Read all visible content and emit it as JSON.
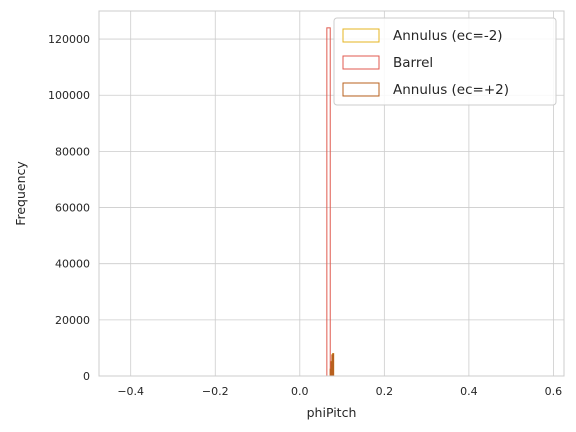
{
  "chart_data": {
    "type": "bar",
    "subtype": "histogram-step",
    "xlabel": "phiPitch",
    "ylabel": "Frequency",
    "xlim": [
      -0.475,
      0.625
    ],
    "ylim": [
      0,
      130000
    ],
    "xticks": [
      -0.4,
      -0.2,
      0.0,
      0.2,
      0.4,
      0.6
    ],
    "xtick_labels": [
      "−0.4",
      "−0.2",
      "0.0",
      "0.2",
      "0.4",
      "0.6"
    ],
    "yticks": [
      0,
      20000,
      40000,
      60000,
      80000,
      100000,
      120000
    ],
    "ytick_labels": [
      "0",
      "20000",
      "40000",
      "60000",
      "80000",
      "100000",
      "120000"
    ],
    "grid": true,
    "legend_position": "top-right",
    "series": [
      {
        "name": "Annulus (ec=-2)",
        "color": "#e6b422",
        "bins": [
          [
            0.072,
            0.074,
            2500
          ],
          [
            0.074,
            0.076,
            5200
          ],
          [
            0.076,
            0.078,
            7600
          ],
          [
            0.078,
            0.08,
            8000
          ]
        ]
      },
      {
        "name": "Barrel",
        "color": "#e05a4f",
        "bins": [
          [
            0.064,
            0.072,
            124000
          ]
        ]
      },
      {
        "name": "Annulus (ec=+2)",
        "color": "#b8601e",
        "bins": [
          [
            0.072,
            0.074,
            2400
          ],
          [
            0.074,
            0.076,
            5000
          ],
          [
            0.076,
            0.078,
            7400
          ],
          [
            0.078,
            0.08,
            7900
          ]
        ]
      }
    ]
  }
}
